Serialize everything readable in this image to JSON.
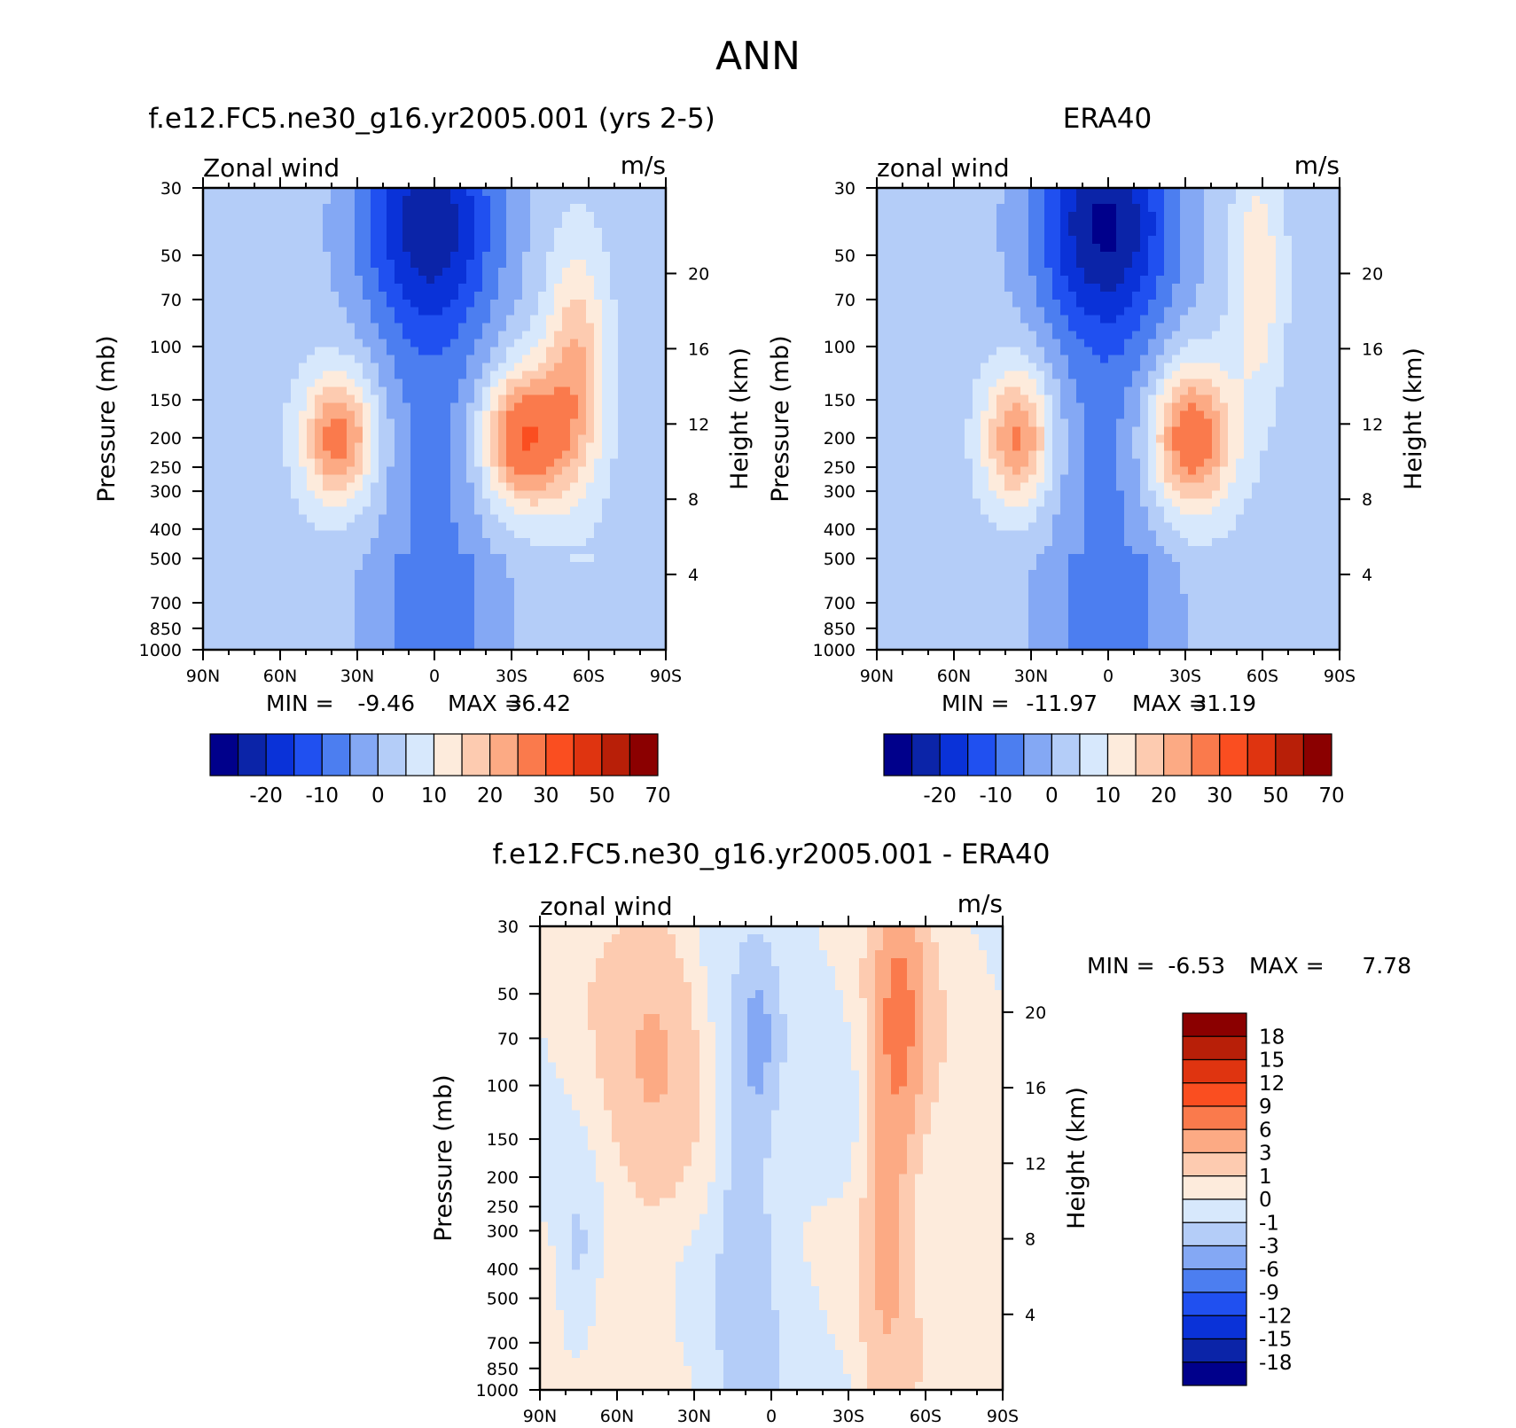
{
  "title": "ANN",
  "colors": {
    "fill_palette": [
      "#00008b",
      "#0b24a8",
      "#0a32d8",
      "#2050f0",
      "#4c7ef0",
      "#84a8f4",
      "#b4cdf8",
      "#d7e8fc",
      "#fdebdc",
      "#fdcbb0",
      "#fcaa84",
      "#fa7a4c",
      "#fa4e20",
      "#df3410",
      "#b81f08",
      "#8b0000"
    ]
  },
  "chart_data": [
    {
      "type": "heatmap",
      "title": "f.e12.FC5.ne30_g16.yr2005.001 (yrs 2-5)",
      "left_label": "Zonal wind",
      "right_label": "m/s",
      "ylabel": "Pressure (mb)",
      "ylabel_right": "Height (km)",
      "x_ticks": [
        "90N",
        "60N",
        "30N",
        "0",
        "30S",
        "60S",
        "90S"
      ],
      "y_ticks": [
        30,
        50,
        70,
        100,
        150,
        200,
        250,
        300,
        400,
        500,
        700,
        850,
        1000
      ],
      "y_right_ticks": [
        20,
        16,
        12,
        8,
        4
      ],
      "min_label": "MIN =",
      "min_value": "-9.46",
      "max_label": "MAX =",
      "max_value": "36.42",
      "levels": [
        -25,
        -20,
        -15,
        -10,
        -5,
        0,
        5,
        10,
        15,
        20,
        25,
        30,
        40,
        50,
        60,
        70,
        80
      ],
      "colorbar_labels": [
        "-20",
        "-10",
        "0",
        "10",
        "20",
        "30",
        "50",
        "70"
      ],
      "features": [
        {
          "kind": "jet",
          "lat": -35,
          "p": 200,
          "amp": 33,
          "sx": 16,
          "sy": 0.5
        },
        {
          "kind": "jet",
          "lat": -55,
          "p": 120,
          "amp": 18,
          "sx": 12,
          "sy": 0.9
        },
        {
          "kind": "jet",
          "lat": 37,
          "p": 200,
          "amp": 26,
          "sx": 14,
          "sy": 0.48
        },
        {
          "kind": "easterly",
          "lat": 3,
          "p": 40,
          "amp": -18,
          "sx": 28,
          "sy": 0.8
        }
      ]
    },
    {
      "type": "heatmap",
      "title": "ERA40",
      "left_label": "zonal wind",
      "right_label": "m/s",
      "ylabel": "Pressure (mb)",
      "ylabel_right": "Height (km)",
      "x_ticks": [
        "90N",
        "60N",
        "30N",
        "0",
        "30S",
        "60S",
        "90S"
      ],
      "y_ticks": [
        30,
        50,
        70,
        100,
        150,
        200,
        250,
        300,
        400,
        500,
        700,
        850,
        1000
      ],
      "y_right_ticks": [
        20,
        16,
        12,
        8,
        4
      ],
      "min_label": "MIN =",
      "min_value": "-11.97",
      "max_label": "MAX =",
      "max_value": "31.19",
      "levels": [
        -25,
        -20,
        -15,
        -10,
        -5,
        0,
        5,
        10,
        15,
        20,
        25,
        30,
        40,
        50,
        60,
        70,
        80
      ],
      "colorbar_labels": [
        "-20",
        "-10",
        "0",
        "10",
        "20",
        "30",
        "50",
        "70"
      ],
      "features": [
        {
          "kind": "jet",
          "lat": -32,
          "p": 200,
          "amp": 29,
          "sx": 16,
          "sy": 0.55
        },
        {
          "kind": "jet",
          "lat": -58,
          "p": 60,
          "amp": 12,
          "sx": 10,
          "sy": 0.9
        },
        {
          "kind": "jet",
          "lat": 35,
          "p": 200,
          "amp": 24,
          "sx": 13,
          "sy": 0.5
        },
        {
          "kind": "easterly",
          "lat": 2,
          "p": 40,
          "amp": -20,
          "sx": 28,
          "sy": 0.8
        }
      ]
    },
    {
      "type": "heatmap",
      "title": "f.e12.FC5.ne30_g16.yr2005.001 - ERA40",
      "left_label": "zonal wind",
      "right_label": "m/s",
      "ylabel": "Pressure (mb)",
      "ylabel_right": "Height (km)",
      "x_ticks": [
        "90N",
        "60N",
        "30N",
        "0",
        "30S",
        "60S",
        "90S"
      ],
      "y_ticks": [
        30,
        50,
        70,
        100,
        150,
        200,
        250,
        300,
        400,
        500,
        700,
        850,
        1000
      ],
      "y_right_ticks": [
        20,
        16,
        12,
        8,
        4
      ],
      "min_label": "MIN =",
      "min_value": "-6.53",
      "max_label": "MAX =",
      "max_value": "7.78",
      "levels": [
        -21,
        -18,
        -15,
        -12,
        -9,
        -6,
        -3,
        -1,
        0,
        1,
        3,
        6,
        9,
        12,
        15,
        18,
        21
      ],
      "colorbar_labels": [
        "18",
        "15",
        "12",
        "9",
        "6",
        "3",
        "1",
        "0",
        "-1",
        "-3",
        "-6",
        "-9",
        "-12",
        "-15",
        "-18"
      ],
      "features": [
        {
          "kind": "blob",
          "lat": -50,
          "p": 60,
          "amp": 6.8,
          "sx": 9,
          "sy": 0.9
        },
        {
          "kind": "blob",
          "lat": -45,
          "p": 300,
          "amp": 3.5,
          "sx": 8,
          "sy": 1.2
        },
        {
          "kind": "blob",
          "lat": 45,
          "p": 80,
          "amp": 2.6,
          "sx": 16,
          "sy": 1.1
        },
        {
          "kind": "blob",
          "lat": 5,
          "p": 70,
          "amp": -3.5,
          "sx": 5,
          "sy": 0.5
        },
        {
          "kind": "blob",
          "lat": 10,
          "p": 300,
          "amp": -1.8,
          "sx": 10,
          "sy": 1.4
        },
        {
          "kind": "blob",
          "lat": 75,
          "p": 400,
          "amp": -1.5,
          "sx": 8,
          "sy": 0.8
        },
        {
          "kind": "blob",
          "lat": -85,
          "p": 400,
          "amp": 1.2,
          "sx": 6,
          "sy": 1.0
        }
      ]
    }
  ]
}
